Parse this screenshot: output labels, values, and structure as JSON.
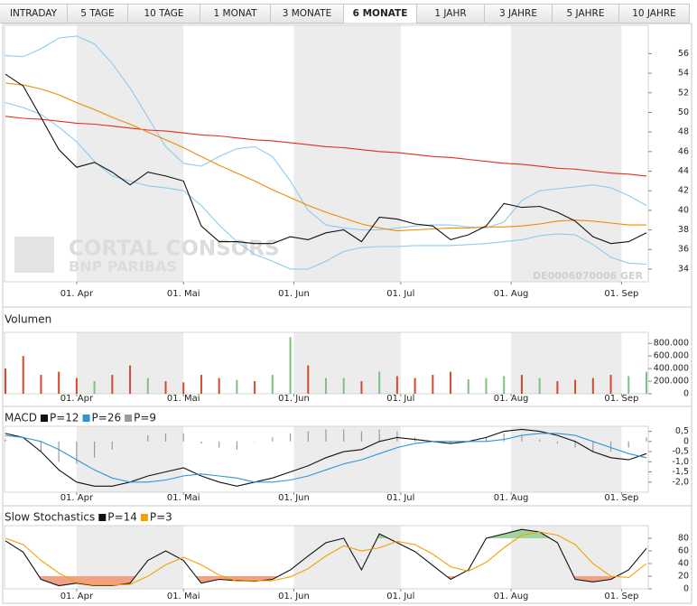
{
  "tabs": [
    "INTRADAY",
    "5 TAGE",
    "10 TAGE",
    "1 MONAT",
    "3 MONATE",
    "6 MONATE",
    "1 JAHR",
    "3 JAHRE",
    "5 JAHRE",
    "10 JAHRE"
  ],
  "active_tab": 5,
  "chart_data": [
    {
      "type": "line",
      "watermark": [
        "CORTAL CONSORS",
        "BNP PARIBAS"
      ],
      "code": "DE0006070006  GER",
      "x": [
        0,
        5,
        10,
        15,
        20,
        25,
        30,
        35,
        40,
        45,
        50,
        55,
        60,
        65,
        70,
        75,
        80,
        85,
        90,
        95,
        100,
        105,
        110,
        115,
        120,
        125,
        130,
        135,
        140,
        145,
        150,
        155,
        160,
        165,
        170,
        175,
        180
      ],
      "xlim": [
        0,
        180
      ],
      "xticks": [
        {
          "value": 20,
          "label": "01. Apr"
        },
        {
          "value": 50,
          "label": "01. Mai"
        },
        {
          "value": 81,
          "label": "01. Jun"
        },
        {
          "value": 111,
          "label": "01. Jul"
        },
        {
          "value": 142,
          "label": "01. Aug"
        },
        {
          "value": 173,
          "label": "01. Sep"
        }
      ],
      "ylim": [
        32.7,
        58.9
      ],
      "yticks": [
        34,
        36,
        38,
        40,
        42,
        44,
        46,
        48,
        50,
        52,
        54,
        56
      ],
      "series": [
        {
          "color": "#8ccbef",
          "values": [
            55.8,
            55.7,
            56.5,
            57.6,
            57.8,
            57.0,
            55.0,
            52.5,
            49.5,
            46.5,
            44.8,
            44.5,
            45.5,
            46.3,
            46.5,
            45.5,
            43.0,
            40.0,
            38.5,
            38.2,
            38.0,
            38.0,
            38.2,
            38.4,
            38.5,
            38.5,
            38.3,
            38.2,
            38.8,
            41.0,
            42.0,
            42.2,
            42.4,
            42.6,
            42.3,
            41.5,
            40.5
          ]
        },
        {
          "color": "#8ccbef",
          "values": [
            51.0,
            50.5,
            49.8,
            48.5,
            47.0,
            45.0,
            43.5,
            43.0,
            42.5,
            42.3,
            42.0,
            40.5,
            38.5,
            36.8,
            35.5,
            34.8,
            34.0,
            34.0,
            34.8,
            35.8,
            36.2,
            36.3,
            36.3,
            36.4,
            36.4,
            36.4,
            36.5,
            36.6,
            36.8,
            37.0,
            37.4,
            37.6,
            37.5,
            36.5,
            35.2,
            34.6,
            34.5
          ]
        },
        {
          "color": "#e0301e",
          "values": [
            49.6,
            49.4,
            49.3,
            49.1,
            48.9,
            48.8,
            48.6,
            48.4,
            48.2,
            48.1,
            47.9,
            47.7,
            47.6,
            47.4,
            47.2,
            47.1,
            46.9,
            46.7,
            46.5,
            46.4,
            46.2,
            46.0,
            45.9,
            45.7,
            45.5,
            45.4,
            45.2,
            45.0,
            44.8,
            44.7,
            44.5,
            44.3,
            44.2,
            44.0,
            43.8,
            43.7,
            43.5
          ]
        },
        {
          "color": "#f08a00",
          "values": [
            53.0,
            52.8,
            52.4,
            51.8,
            51.0,
            50.3,
            49.5,
            48.8,
            48.0,
            47.2,
            46.4,
            45.5,
            44.6,
            43.8,
            43.0,
            42.1,
            41.3,
            40.5,
            39.8,
            39.2,
            38.6,
            38.2,
            37.9,
            38.0,
            38.1,
            38.2,
            38.2,
            38.3,
            38.3,
            38.4,
            38.6,
            38.9,
            39.0,
            38.9,
            38.7,
            38.5,
            38.5
          ]
        },
        {
          "color": "#111111",
          "values": [
            53.9,
            52.7,
            49.5,
            46.2,
            44.4,
            44.9,
            43.9,
            42.6,
            43.9,
            43.5,
            43.0,
            38.4,
            36.8,
            36.8,
            36.6,
            36.6,
            37.3,
            37.0,
            37.7,
            38.0,
            36.8,
            39.3,
            39.1,
            38.6,
            38.4,
            37.0,
            37.5,
            38.4,
            40.7,
            40.3,
            40.4,
            39.8,
            38.9,
            37.3,
            36.6,
            36.8,
            37.7
          ]
        }
      ]
    },
    {
      "type": "bar",
      "title": "Volumen",
      "x": [
        0,
        5,
        10,
        15,
        20,
        25,
        30,
        35,
        40,
        45,
        50,
        55,
        60,
        65,
        70,
        75,
        80,
        85,
        90,
        95,
        100,
        105,
        110,
        115,
        120,
        125,
        130,
        135,
        140,
        145,
        150,
        155,
        160,
        165,
        170,
        175,
        180
      ],
      "xlim": [
        0,
        180
      ],
      "xticks": [
        {
          "value": 20,
          "label": "01. Apr"
        },
        {
          "value": 50,
          "label": "01. Mai"
        },
        {
          "value": 81,
          "label": "01. Jun"
        },
        {
          "value": 111,
          "label": "01. Jul"
        },
        {
          "value": 142,
          "label": "01. Aug"
        },
        {
          "value": 173,
          "label": "01. Sep"
        }
      ],
      "ylim": [
        0,
        975000
      ],
      "yticks": [
        0,
        {
          "value": 200000,
          "label": "200.000"
        },
        {
          "value": 400000,
          "label": "400.000"
        },
        {
          "value": 600000,
          "label": "600.000"
        },
        {
          "value": 800000,
          "label": "800.000"
        }
      ],
      "values": [
        400000,
        600000,
        300000,
        350000,
        250000,
        200000,
        300000,
        450000,
        250000,
        200000,
        180000,
        300000,
        250000,
        220000,
        200000,
        300000,
        900000,
        450000,
        250000,
        250000,
        200000,
        350000,
        280000,
        250000,
        300000,
        350000,
        230000,
        250000,
        280000,
        300000,
        250000,
        200000,
        220000,
        250000,
        300000,
        280000,
        350000
      ],
      "colors": [
        "#d04a30",
        "#d04a30",
        "#d04a30",
        "#d04a30",
        "#d04a30",
        "#7cc47c",
        "#d04a30",
        "#d04a30",
        "#7cc47c",
        "#d04a30",
        "#d04a30",
        "#d04a30",
        "#d04a30",
        "#7cc47c",
        "#d04a30",
        "#7cc47c",
        "#7cc47c",
        "#d04a30",
        "#7cc47c",
        "#7cc47c",
        "#d04a30",
        "#7cc47c",
        "#d04a30",
        "#d04a30",
        "#d04a30",
        "#d04a30",
        "#7cc47c",
        "#7cc47c",
        "#7cc47c",
        "#d04a30",
        "#7cc47c",
        "#d04a30",
        "#d04a30",
        "#d04a30",
        "#d04a30",
        "#7cc47c",
        "#7cc47c"
      ]
    },
    {
      "type": "line",
      "title": "MACD",
      "x": [
        0,
        5,
        10,
        15,
        20,
        25,
        30,
        35,
        40,
        45,
        50,
        55,
        60,
        65,
        70,
        75,
        80,
        85,
        90,
        95,
        100,
        105,
        110,
        115,
        120,
        125,
        130,
        135,
        140,
        145,
        150,
        155,
        160,
        165,
        170,
        175,
        180
      ],
      "xlim": [
        0,
        180
      ],
      "xticks": [
        {
          "value": 20,
          "label": "01. Apr"
        },
        {
          "value": 50,
          "label": "01. Mai"
        },
        {
          "value": 81,
          "label": "01. Jun"
        },
        {
          "value": 111,
          "label": "01. Jul"
        },
        {
          "value": 142,
          "label": "01. Aug"
        },
        {
          "value": 173,
          "label": "01. Sep"
        }
      ],
      "ylim": [
        -2.5,
        0.75
      ],
      "yticks": [
        {
          "value": -2,
          "label": "-2,0"
        },
        {
          "value": -1.5,
          "label": "-1,5"
        },
        {
          "value": -1,
          "label": "-1,0"
        },
        {
          "value": -0.5,
          "label": "-0,5"
        },
        0,
        {
          "value": 0.5,
          "label": "0,5"
        }
      ],
      "series": [
        {
          "name": "P=12",
          "color": "#111111",
          "values": [
            0.4,
            0.2,
            -0.5,
            -1.4,
            -2.0,
            -2.2,
            -2.2,
            -2.0,
            -1.7,
            -1.5,
            -1.3,
            -1.7,
            -2.0,
            -2.2,
            -2.0,
            -1.8,
            -1.5,
            -1.2,
            -0.8,
            -0.5,
            -0.4,
            0,
            0.2,
            0.1,
            0,
            -0.1,
            0,
            0.2,
            0.5,
            0.6,
            0.5,
            0.3,
            0,
            -0.5,
            -0.8,
            -0.9,
            -0.6
          ]
        },
        {
          "name": "P=26",
          "color": "#2f95d6",
          "values": [
            0.3,
            0.2,
            0.0,
            -0.4,
            -0.9,
            -1.4,
            -1.8,
            -2.0,
            -2.0,
            -1.9,
            -1.7,
            -1.6,
            -1.7,
            -1.8,
            -2.0,
            -2.0,
            -1.9,
            -1.7,
            -1.4,
            -1.1,
            -0.9,
            -0.6,
            -0.3,
            -0.1,
            0.0,
            0.0,
            0.0,
            0.0,
            0.1,
            0.3,
            0.4,
            0.4,
            0.3,
            0.0,
            -0.3,
            -0.6,
            -0.8
          ]
        },
        {
          "name": "P=9",
          "color": "#9a9a9a",
          "style": "bar",
          "values": [
            0.1,
            0.0,
            -0.5,
            -1.0,
            -1.1,
            -0.8,
            -0.4,
            0.0,
            0.3,
            0.4,
            0.4,
            -0.1,
            -0.3,
            -0.4,
            0.0,
            0.2,
            0.4,
            0.5,
            0.6,
            0.6,
            0.5,
            0.6,
            0.5,
            0.2,
            0.0,
            -0.1,
            0.0,
            0.2,
            0.4,
            0.3,
            0.1,
            -0.1,
            -0.3,
            -0.5,
            -0.5,
            -0.3,
            0.2
          ]
        }
      ]
    },
    {
      "type": "line",
      "title": "Slow Stochastics",
      "x": [
        0,
        5,
        10,
        15,
        20,
        25,
        30,
        35,
        40,
        45,
        50,
        55,
        60,
        65,
        70,
        75,
        80,
        85,
        90,
        95,
        100,
        105,
        110,
        115,
        120,
        125,
        130,
        135,
        140,
        145,
        150,
        155,
        160,
        165,
        170,
        175,
        180
      ],
      "xlim": [
        0,
        180
      ],
      "xticks": [
        {
          "value": 20,
          "label": "01. Apr"
        },
        {
          "value": 50,
          "label": "01. Mai"
        },
        {
          "value": 81,
          "label": "01. Jun"
        },
        {
          "value": 111,
          "label": "01. Jul"
        },
        {
          "value": 142,
          "label": "01. Aug"
        },
        {
          "value": 173,
          "label": "01. Sep"
        }
      ],
      "ylim": [
        0,
        100
      ],
      "yticks": [
        0,
        20,
        40,
        60,
        80
      ],
      "fill_colors": [
        "#f2a184",
        "#9fd49f"
      ],
      "series": [
        {
          "name": "P=14",
          "color": "#111111",
          "values": [
            76,
            58,
            15,
            5,
            9,
            5,
            5,
            9,
            45,
            60,
            45,
            9,
            15,
            13,
            12,
            15,
            30,
            52,
            73,
            80,
            30,
            87,
            73,
            59,
            37,
            15,
            30,
            80,
            87,
            94,
            90,
            73,
            15,
            11,
            15,
            30,
            64
          ]
        },
        {
          "name": "P=3",
          "color": "#f5a000",
          "values": [
            80,
            70,
            45,
            25,
            10,
            6,
            6,
            7,
            20,
            38,
            50,
            38,
            22,
            12,
            13,
            13,
            19,
            32,
            52,
            68,
            60,
            65,
            75,
            70,
            55,
            35,
            28,
            42,
            65,
            85,
            90,
            85,
            70,
            40,
            20,
            18,
            40
          ]
        }
      ]
    }
  ]
}
